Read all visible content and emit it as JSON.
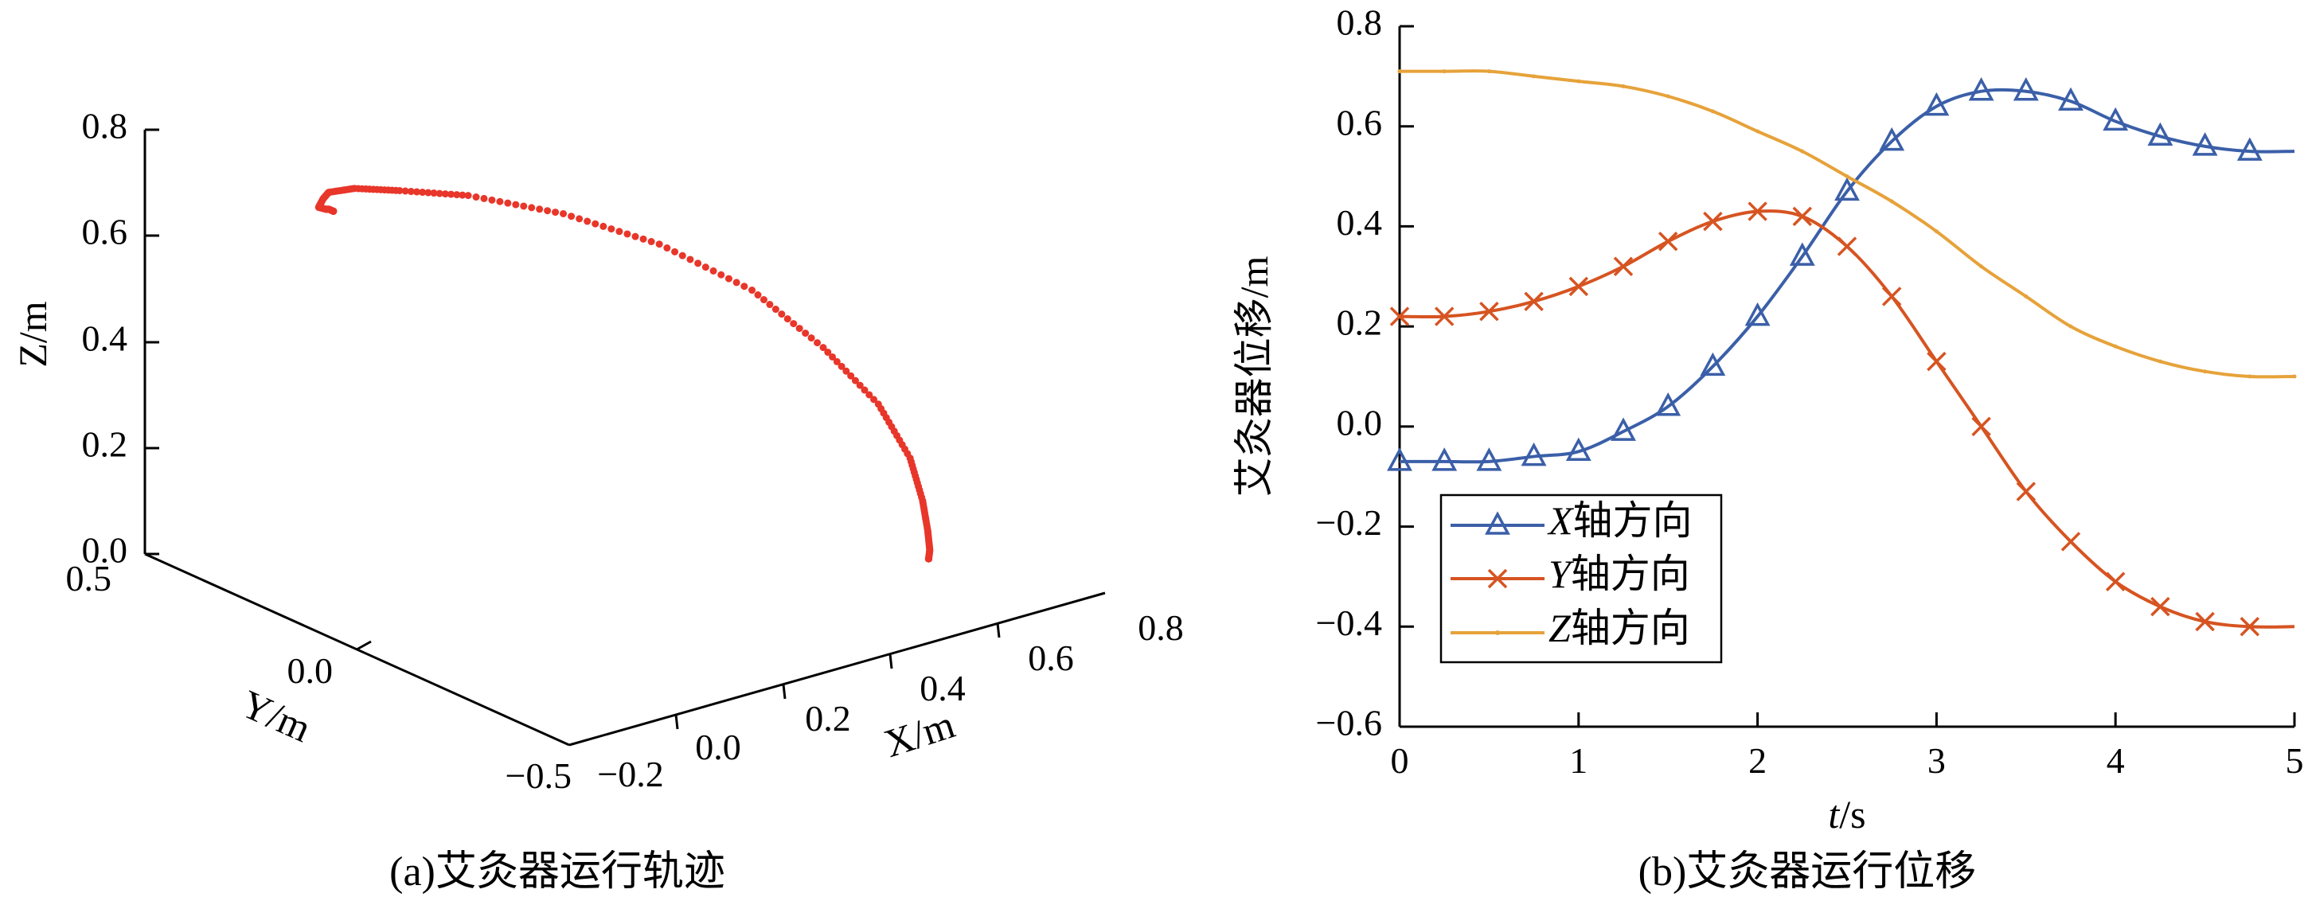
{
  "colors": {
    "trajectory": "#e8362a",
    "x_series": "#3b5fa8",
    "y_series": "#d65421",
    "z_series": "#e6a23a",
    "axis": "#000000"
  },
  "chart_data": [
    {
      "type": "line3d",
      "caption": "(a)艾灸器运行轨迹",
      "xlabel": "X/m",
      "ylabel": "Y/m",
      "zlabel": "Z/m",
      "xlim": [
        -0.2,
        0.8
      ],
      "ylim": [
        -0.5,
        0.5
      ],
      "zlim": [
        0.0,
        0.8
      ],
      "x_tick_labels": [
        "−0.2",
        "0.0",
        "0.2",
        "0.4",
        "0.6",
        "0.8"
      ],
      "y_tick_labels": [
        "0.5",
        "0.0",
        "−0.5"
      ],
      "z_tick_labels": [
        "0.0",
        "0.2",
        "0.4",
        "0.6",
        "0.8"
      ],
      "series": [
        {
          "name": "",
          "x": [
            -0.07,
            -0.07,
            -0.07,
            -0.06,
            -0.05,
            -0.01,
            0.04,
            0.12,
            0.22,
            0.34,
            0.47,
            0.57,
            0.64,
            0.67,
            0.67,
            0.65,
            0.61,
            0.58,
            0.56,
            0.55,
            0.55
          ],
          "y": [
            0.22,
            0.22,
            0.23,
            0.25,
            0.28,
            0.32,
            0.37,
            0.41,
            0.43,
            0.42,
            0.36,
            0.26,
            0.13,
            0.0,
            -0.13,
            -0.23,
            -0.31,
            -0.36,
            -0.39,
            -0.4,
            -0.4
          ],
          "z": [
            0.71,
            0.71,
            0.71,
            0.7,
            0.69,
            0.68,
            0.66,
            0.63,
            0.59,
            0.55,
            0.5,
            0.45,
            0.39,
            0.32,
            0.26,
            0.2,
            0.16,
            0.13,
            0.11,
            0.1,
            0.1
          ]
        }
      ]
    },
    {
      "type": "line",
      "caption": "(b)艾灸器运行位移",
      "xlabel_italic": "t",
      "xlabel_unit": "/s",
      "ylabel": "艾灸器位移/m",
      "xlim": [
        0,
        5
      ],
      "ylim": [
        -0.6,
        0.8
      ],
      "x_tick_labels": [
        "0",
        "1",
        "2",
        "3",
        "4",
        "5"
      ],
      "y_tick_labels": [
        "0.8",
        "0.6",
        "0.4",
        "0.2",
        "0.0",
        "−0.2",
        "−0.4",
        "−0.6"
      ],
      "legend_position": "lower-left",
      "x": [
        0,
        0.25,
        0.5,
        0.75,
        1.0,
        1.25,
        1.5,
        1.75,
        2.0,
        2.25,
        2.5,
        2.75,
        3.0,
        3.25,
        3.5,
        3.75,
        4.0,
        4.25,
        4.5,
        4.75,
        5.0
      ],
      "series": [
        {
          "name_italic": "X",
          "name_rest": "轴方向",
          "marker": "triangle",
          "values": [
            -0.07,
            -0.07,
            -0.07,
            -0.06,
            -0.05,
            -0.01,
            0.04,
            0.12,
            0.22,
            0.34,
            0.47,
            0.57,
            0.64,
            0.67,
            0.67,
            0.65,
            0.61,
            0.58,
            0.56,
            0.55,
            0.55
          ]
        },
        {
          "name_italic": "Y",
          "name_rest": "轴方向",
          "marker": "x",
          "values": [
            0.22,
            0.22,
            0.23,
            0.25,
            0.28,
            0.32,
            0.37,
            0.41,
            0.43,
            0.42,
            0.36,
            0.26,
            0.13,
            0.0,
            -0.13,
            -0.23,
            -0.31,
            -0.36,
            -0.39,
            -0.4,
            -0.4
          ]
        },
        {
          "name_italic": "Z",
          "name_rest": "轴方向",
          "marker": "dot",
          "values": [
            0.71,
            0.71,
            0.71,
            0.7,
            0.69,
            0.68,
            0.66,
            0.63,
            0.59,
            0.55,
            0.5,
            0.45,
            0.39,
            0.32,
            0.26,
            0.2,
            0.16,
            0.13,
            0.11,
            0.1,
            0.1
          ]
        }
      ]
    }
  ]
}
